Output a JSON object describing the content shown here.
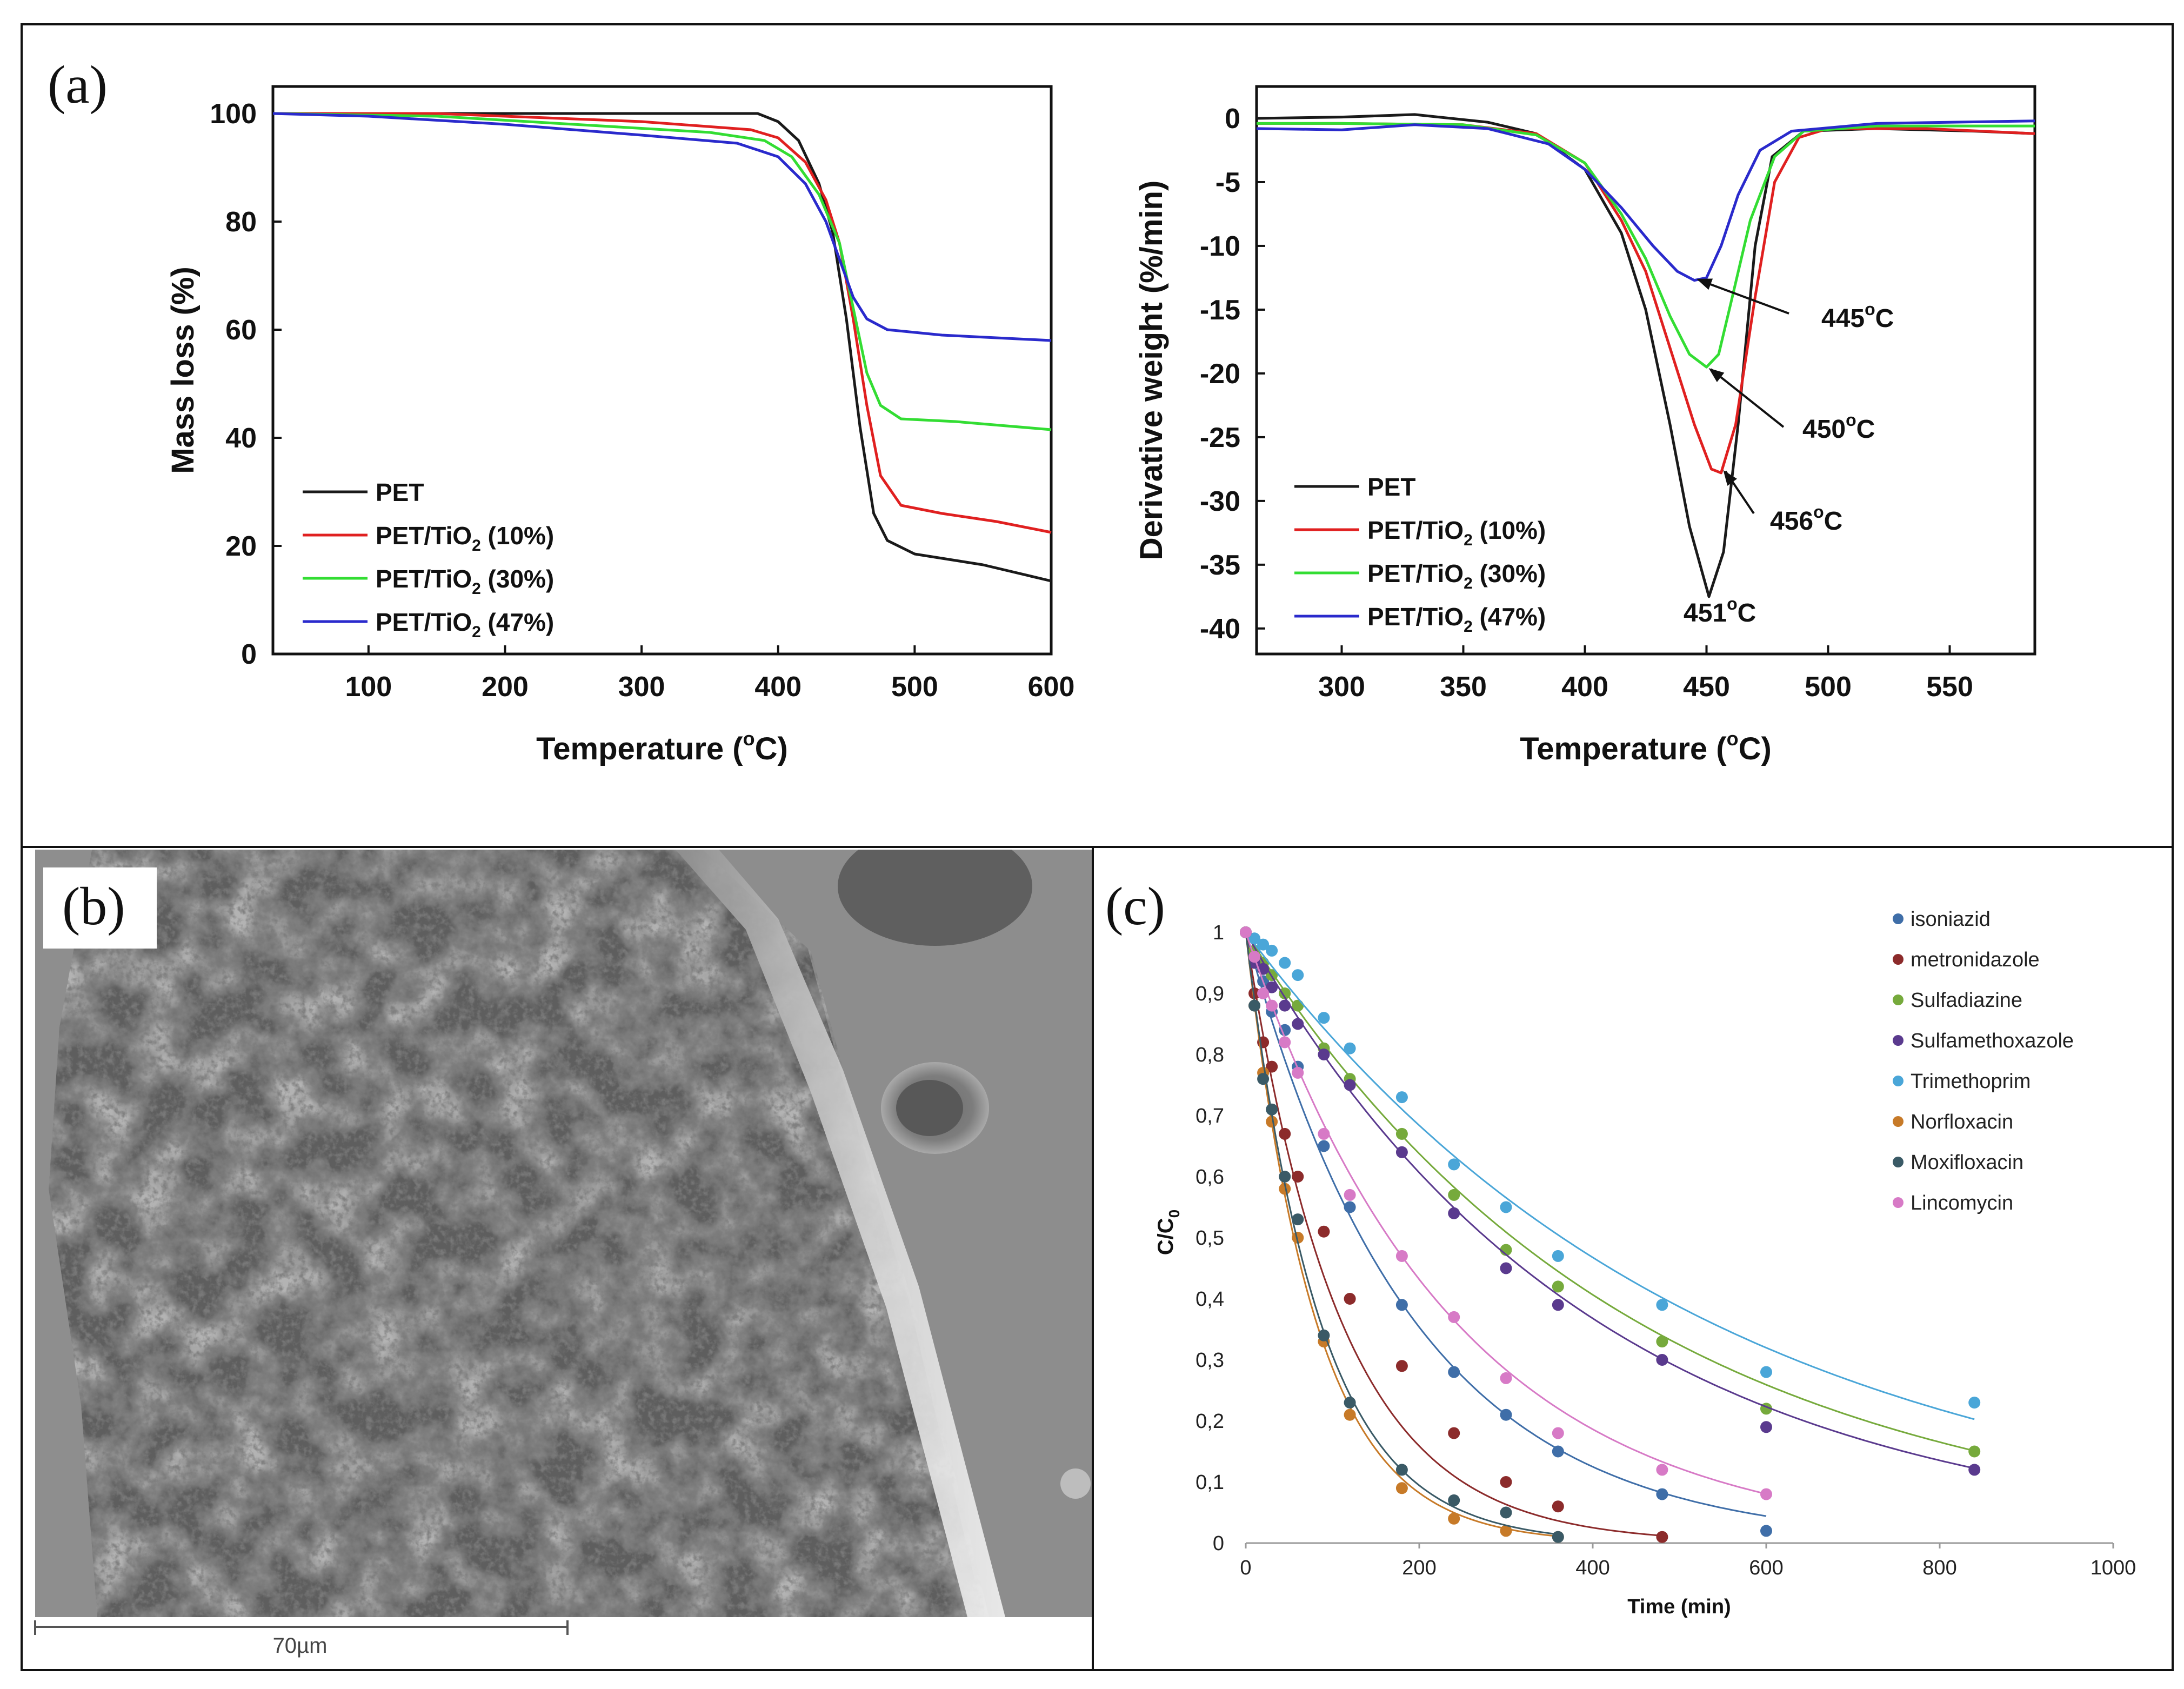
{
  "panel_labels": {
    "a": "(a)",
    "b": "(b)",
    "c": "(c)"
  },
  "colors": {
    "black": "#1a1a1a",
    "red": "#e02020",
    "green": "#33dd33",
    "blue": "#2a2acc",
    "isoniazid": "#3f6ea8",
    "metronidazole": "#8c2b2b",
    "sulfadiazine": "#76aa3c",
    "sulfamethoxazole": "#5a3a8e",
    "trimethoprim": "#4aa6d8",
    "norfloxacin": "#c77a28",
    "moxifloxacin": "#3a5a66",
    "lincomycin": "#d77ac6"
  },
  "sem": {
    "scale_label": "70µm"
  },
  "chart_data": [
    {
      "id": "tga",
      "type": "line",
      "xlabel": "Temperature (°C)",
      "ylabel": "Mass loss (%)",
      "xlim": [
        30,
        600
      ],
      "ylim": [
        0,
        105
      ],
      "xticks": [
        100,
        200,
        300,
        400,
        500,
        600
      ],
      "yticks": [
        0,
        20,
        40,
        60,
        80,
        100
      ],
      "legend": {
        "position": "bottom-left"
      },
      "series": [
        {
          "name": "PET",
          "label": "PET",
          "sub": "",
          "suffix": "",
          "color": "#1a1a1a",
          "points": [
            [
              30,
              100
            ],
            [
              200,
              100
            ],
            [
              350,
              100
            ],
            [
              385,
              100
            ],
            [
              400,
              98.5
            ],
            [
              415,
              95
            ],
            [
              430,
              87
            ],
            [
              440,
              78
            ],
            [
              450,
              62
            ],
            [
              460,
              42
            ],
            [
              470,
              26
            ],
            [
              480,
              21
            ],
            [
              500,
              18.5
            ],
            [
              550,
              16.5
            ],
            [
              600,
              13.5
            ]
          ]
        },
        {
          "name": "PET/TiO2 (10%)",
          "label": "PET/TiO",
          "sub": "2",
          "suffix": " (10%)",
          "color": "#e02020",
          "points": [
            [
              30,
              100
            ],
            [
              150,
              100
            ],
            [
              300,
              98.5
            ],
            [
              380,
              97
            ],
            [
              400,
              95.5
            ],
            [
              420,
              91
            ],
            [
              435,
              84
            ],
            [
              445,
              76
            ],
            [
              455,
              62
            ],
            [
              465,
              46
            ],
            [
              475,
              33
            ],
            [
              490,
              27.5
            ],
            [
              520,
              26
            ],
            [
              560,
              24.5
            ],
            [
              600,
              22.5
            ]
          ]
        },
        {
          "name": "PET/TiO2 (30%)",
          "label": "PET/TiO",
          "sub": "2",
          "suffix": " (30%)",
          "color": "#33dd33",
          "points": [
            [
              30,
              100
            ],
            [
              150,
              99.5
            ],
            [
              250,
              98
            ],
            [
              350,
              96.5
            ],
            [
              390,
              95
            ],
            [
              410,
              92
            ],
            [
              430,
              85
            ],
            [
              445,
              76
            ],
            [
              455,
              64
            ],
            [
              465,
              52
            ],
            [
              475,
              46
            ],
            [
              490,
              43.5
            ],
            [
              530,
              43
            ],
            [
              600,
              41.5
            ]
          ]
        },
        {
          "name": "PET/TiO2 (47%)",
          "label": "PET/TiO",
          "sub": "2",
          "suffix": " (47%)",
          "color": "#2a2acc",
          "points": [
            [
              30,
              100
            ],
            [
              100,
              99.5
            ],
            [
              200,
              98
            ],
            [
              300,
              96
            ],
            [
              370,
              94.5
            ],
            [
              400,
              92
            ],
            [
              420,
              87
            ],
            [
              435,
              80
            ],
            [
              445,
              73
            ],
            [
              455,
              66
            ],
            [
              465,
              62
            ],
            [
              480,
              60
            ],
            [
              520,
              59
            ],
            [
              600,
              58
            ]
          ]
        }
      ]
    },
    {
      "id": "dtg",
      "type": "line",
      "xlabel": "Temperature (°C)",
      "ylabel": "Derivative weight (%/min)",
      "xlim": [
        265,
        585
      ],
      "ylim": [
        -42,
        2.5
      ],
      "xticks": [
        300,
        350,
        400,
        450,
        500,
        550
      ],
      "yticks": [
        0,
        -5,
        -10,
        -15,
        -20,
        -25,
        -30,
        -35,
        -40
      ],
      "legend": {
        "position": "bottom-left"
      },
      "annotations": [
        {
          "text": "445°C",
          "value": "445",
          "x": 445,
          "y": -12.5
        },
        {
          "text": "450°C",
          "value": "450",
          "x": 450,
          "y": -19.5
        },
        {
          "text": "456°C",
          "value": "456",
          "x": 456,
          "y": -27.5
        },
        {
          "text": "451°C",
          "value": "451",
          "x": 451,
          "y": -37.5
        }
      ],
      "series": [
        {
          "name": "PET",
          "label": "PET",
          "sub": "",
          "suffix": "",
          "color": "#1a1a1a",
          "points": [
            [
              265,
              0
            ],
            [
              300,
              0.1
            ],
            [
              330,
              0.3
            ],
            [
              360,
              -0.3
            ],
            [
              380,
              -1.2
            ],
            [
              400,
              -4
            ],
            [
              415,
              -9
            ],
            [
              425,
              -15
            ],
            [
              435,
              -24
            ],
            [
              443,
              -32
            ],
            [
              451,
              -37.5
            ],
            [
              457,
              -34
            ],
            [
              463,
              -24
            ],
            [
              470,
              -10
            ],
            [
              477,
              -3
            ],
            [
              490,
              -1
            ],
            [
              520,
              -0.8
            ],
            [
              560,
              -1
            ],
            [
              585,
              -1.2
            ]
          ]
        },
        {
          "name": "PET/TiO2 (10%)",
          "label": "PET/TiO",
          "sub": "2",
          "suffix": " (10%)",
          "color": "#e02020",
          "points": [
            [
              265,
              -0.4
            ],
            [
              300,
              -0.4
            ],
            [
              350,
              -0.5
            ],
            [
              380,
              -1.2
            ],
            [
              400,
              -3.5
            ],
            [
              415,
              -8
            ],
            [
              425,
              -12
            ],
            [
              435,
              -18
            ],
            [
              445,
              -24
            ],
            [
              452,
              -27.5
            ],
            [
              456,
              -27.8
            ],
            [
              462,
              -24
            ],
            [
              470,
              -14
            ],
            [
              478,
              -5
            ],
            [
              488,
              -1.5
            ],
            [
              500,
              -0.8
            ],
            [
              540,
              -0.8
            ],
            [
              585,
              -1.2
            ]
          ]
        },
        {
          "name": "PET/TiO2 (30%)",
          "label": "PET/TiO",
          "sub": "2",
          "suffix": " (30%)",
          "color": "#33dd33",
          "points": [
            [
              265,
              -0.4
            ],
            [
              300,
              -0.4
            ],
            [
              350,
              -0.5
            ],
            [
              380,
              -1.3
            ],
            [
              400,
              -3.5
            ],
            [
              415,
              -7.5
            ],
            [
              425,
              -11
            ],
            [
              435,
              -15.5
            ],
            [
              443,
              -18.5
            ],
            [
              450,
              -19.5
            ],
            [
              455,
              -18.5
            ],
            [
              460,
              -14.5
            ],
            [
              468,
              -8
            ],
            [
              478,
              -3
            ],
            [
              490,
              -1
            ],
            [
              520,
              -0.6
            ],
            [
              585,
              -0.6
            ]
          ]
        },
        {
          "name": "PET/TiO2 (47%)",
          "label": "PET/TiO",
          "sub": "2",
          "suffix": " (47%)",
          "color": "#2a2acc",
          "points": [
            [
              265,
              -0.8
            ],
            [
              300,
              -0.9
            ],
            [
              330,
              -0.5
            ],
            [
              360,
              -0.8
            ],
            [
              385,
              -2
            ],
            [
              400,
              -4
            ],
            [
              415,
              -7
            ],
            [
              428,
              -10
            ],
            [
              438,
              -12
            ],
            [
              445,
              -12.7
            ],
            [
              450,
              -12.5
            ],
            [
              456,
              -10
            ],
            [
              463,
              -6
            ],
            [
              472,
              -2.5
            ],
            [
              485,
              -1
            ],
            [
              520,
              -0.4
            ],
            [
              585,
              -0.2
            ]
          ]
        }
      ]
    },
    {
      "id": "kinetics",
      "type": "scatter",
      "xlabel": "Time (min)",
      "ylabel": "C/C",
      "ylabel_sub": "0",
      "xlim": [
        0,
        1000
      ],
      "ylim": [
        0,
        1
      ],
      "xticks": [
        0,
        200,
        400,
        600,
        800,
        1000
      ],
      "yticks": [
        0,
        0.1,
        0.2,
        0.3,
        0.4,
        0.5,
        0.6,
        0.7,
        0.8,
        0.9,
        1
      ],
      "ytick_labels": [
        "0",
        "0,1",
        "0,2",
        "0,3",
        "0,4",
        "0,5",
        "0,6",
        "0,7",
        "0,8",
        "0,9",
        "1"
      ],
      "legend": {
        "position": "top-right"
      },
      "series": [
        {
          "name": "isoniazid",
          "color": "#3f6ea8",
          "k": 0.0052,
          "fit_end": 600,
          "x": [
            0,
            10,
            20,
            30,
            45,
            60,
            90,
            120,
            180,
            240,
            300,
            360,
            480,
            600
          ],
          "y": [
            1,
            0.96,
            0.92,
            0.87,
            0.84,
            0.78,
            0.65,
            0.55,
            0.39,
            0.28,
            0.21,
            0.15,
            0.08,
            0.02
          ]
        },
        {
          "name": "metronidazole",
          "color": "#8c2b2b",
          "k": 0.0092,
          "fit_end": 480,
          "x": [
            0,
            10,
            20,
            30,
            45,
            60,
            90,
            120,
            180,
            240,
            300,
            360,
            480
          ],
          "y": [
            1,
            0.9,
            0.82,
            0.78,
            0.67,
            0.6,
            0.51,
            0.4,
            0.29,
            0.18,
            0.1,
            0.06,
            0.01
          ]
        },
        {
          "name": "Sulfadiazine",
          "color": "#76aa3c",
          "k": 0.00225,
          "fit_end": 840,
          "x": [
            0,
            10,
            20,
            30,
            45,
            60,
            90,
            120,
            180,
            240,
            300,
            360,
            480,
            600,
            840
          ],
          "y": [
            1,
            0.97,
            0.95,
            0.93,
            0.9,
            0.88,
            0.81,
            0.76,
            0.67,
            0.57,
            0.48,
            0.42,
            0.33,
            0.22,
            0.15
          ]
        },
        {
          "name": "Sulfamethoxazole",
          "color": "#5a3a8e",
          "k": 0.0025,
          "fit_end": 840,
          "x": [
            0,
            10,
            20,
            30,
            45,
            60,
            90,
            120,
            180,
            240,
            300,
            360,
            480,
            600,
            840
          ],
          "y": [
            1,
            0.95,
            0.94,
            0.91,
            0.88,
            0.85,
            0.8,
            0.75,
            0.64,
            0.54,
            0.45,
            0.39,
            0.3,
            0.19,
            0.12
          ]
        },
        {
          "name": "Trimethoprim",
          "color": "#4aa6d8",
          "k": 0.0019,
          "fit_end": 840,
          "x": [
            0,
            10,
            20,
            30,
            45,
            60,
            90,
            120,
            180,
            240,
            300,
            360,
            480,
            600,
            840
          ],
          "y": [
            1,
            0.99,
            0.98,
            0.97,
            0.95,
            0.93,
            0.86,
            0.81,
            0.73,
            0.62,
            0.55,
            0.47,
            0.39,
            0.28,
            0.23
          ]
        },
        {
          "name": "Norfloxacin",
          "color": "#c77a28",
          "k": 0.0125,
          "fit_end": 360,
          "x": [
            0,
            10,
            20,
            30,
            45,
            60,
            90,
            120,
            180,
            240,
            300,
            360
          ],
          "y": [
            1,
            0.88,
            0.77,
            0.69,
            0.58,
            0.5,
            0.33,
            0.21,
            0.09,
            0.04,
            0.02,
            0.01
          ]
        },
        {
          "name": "Moxifloxacin",
          "color": "#3a5a66",
          "k": 0.0118,
          "fit_end": 360,
          "x": [
            0,
            10,
            20,
            30,
            45,
            60,
            90,
            120,
            180,
            240,
            300,
            360
          ],
          "y": [
            1,
            0.88,
            0.76,
            0.71,
            0.6,
            0.53,
            0.34,
            0.23,
            0.12,
            0.07,
            0.05,
            0.01
          ]
        },
        {
          "name": "Lincomycin",
          "color": "#d77ac6",
          "k": 0.0042,
          "fit_end": 600,
          "x": [
            0,
            10,
            20,
            30,
            45,
            60,
            90,
            120,
            180,
            240,
            300,
            360,
            480,
            600
          ],
          "y": [
            1,
            0.96,
            0.9,
            0.88,
            0.82,
            0.77,
            0.67,
            0.57,
            0.47,
            0.37,
            0.27,
            0.18,
            0.12,
            0.08
          ]
        }
      ]
    }
  ]
}
